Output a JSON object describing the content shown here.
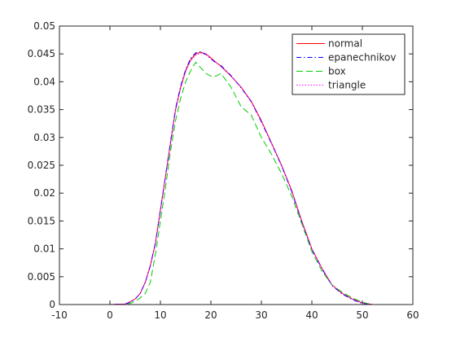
{
  "chart_data": {
    "type": "line",
    "x": [
      -10,
      0,
      3,
      4,
      5,
      6,
      7,
      8,
      9,
      10,
      11,
      12,
      13,
      14,
      15,
      16,
      17,
      18,
      19,
      20,
      21,
      22,
      24,
      26,
      28,
      30,
      32,
      34,
      36,
      38,
      40,
      42,
      44,
      46,
      48,
      50,
      52,
      55,
      60
    ],
    "series": [
      {
        "name": "normal",
        "color": "#ff0000",
        "style": "solid",
        "values": [
          0,
          0,
          0.0001,
          0.0005,
          0.001,
          0.002,
          0.004,
          0.007,
          0.011,
          0.017,
          0.023,
          0.029,
          0.035,
          0.039,
          0.042,
          0.044,
          0.045,
          0.0453,
          0.045,
          0.0443,
          0.0435,
          0.0428,
          0.041,
          0.039,
          0.0365,
          0.033,
          0.029,
          0.025,
          0.0205,
          0.015,
          0.01,
          0.0065,
          0.0035,
          0.002,
          0.001,
          0.0003,
          0,
          0,
          0
        ]
      },
      {
        "name": "epanechnikov",
        "color": "#0000ff",
        "style": "dashdot",
        "values": [
          0,
          0,
          0.0001,
          0.0004,
          0.001,
          0.002,
          0.004,
          0.007,
          0.011,
          0.017,
          0.023,
          0.0292,
          0.0352,
          0.0392,
          0.0422,
          0.0442,
          0.0452,
          0.0454,
          0.0449,
          0.0441,
          0.0434,
          0.0429,
          0.0411,
          0.0389,
          0.0364,
          0.0328,
          0.0289,
          0.0249,
          0.0203,
          0.0148,
          0.0099,
          0.0064,
          0.0034,
          0.0019,
          0.0009,
          0.0002,
          0,
          0,
          0
        ]
      },
      {
        "name": "box",
        "color": "#00cc00",
        "style": "dash",
        "values": [
          0,
          0,
          0,
          0.0002,
          0.0006,
          0.0012,
          0.002,
          0.004,
          0.009,
          0.015,
          0.021,
          0.0275,
          0.033,
          0.037,
          0.04,
          0.042,
          0.0435,
          0.0425,
          0.0415,
          0.041,
          0.041,
          0.0415,
          0.039,
          0.0355,
          0.034,
          0.03,
          0.027,
          0.0235,
          0.0195,
          0.0145,
          0.0095,
          0.006,
          0.0035,
          0.0022,
          0.0012,
          0.0004,
          0,
          0,
          0
        ]
      },
      {
        "name": "triangle",
        "color": "#ff00ff",
        "style": "dot",
        "values": [
          0,
          0,
          0.0001,
          0.0005,
          0.001,
          0.002,
          0.004,
          0.0068,
          0.0108,
          0.0168,
          0.0228,
          0.0288,
          0.0348,
          0.0388,
          0.0418,
          0.0438,
          0.0448,
          0.0451,
          0.0449,
          0.0442,
          0.0435,
          0.0427,
          0.041,
          0.039,
          0.0364,
          0.0329,
          0.029,
          0.025,
          0.0204,
          0.0149,
          0.01,
          0.0065,
          0.0035,
          0.002,
          0.001,
          0.0003,
          0,
          0,
          0
        ]
      }
    ],
    "xlim": [
      -10,
      60
    ],
    "xticks": [
      -10,
      0,
      10,
      20,
      30,
      40,
      50,
      60
    ],
    "ylim": [
      0,
      0.05
    ],
    "yticks": [
      0,
      0.005,
      0.01,
      0.015,
      0.02,
      0.025,
      0.03,
      0.035,
      0.04,
      0.045,
      0.05
    ],
    "grid": false,
    "legend": "northeast"
  }
}
